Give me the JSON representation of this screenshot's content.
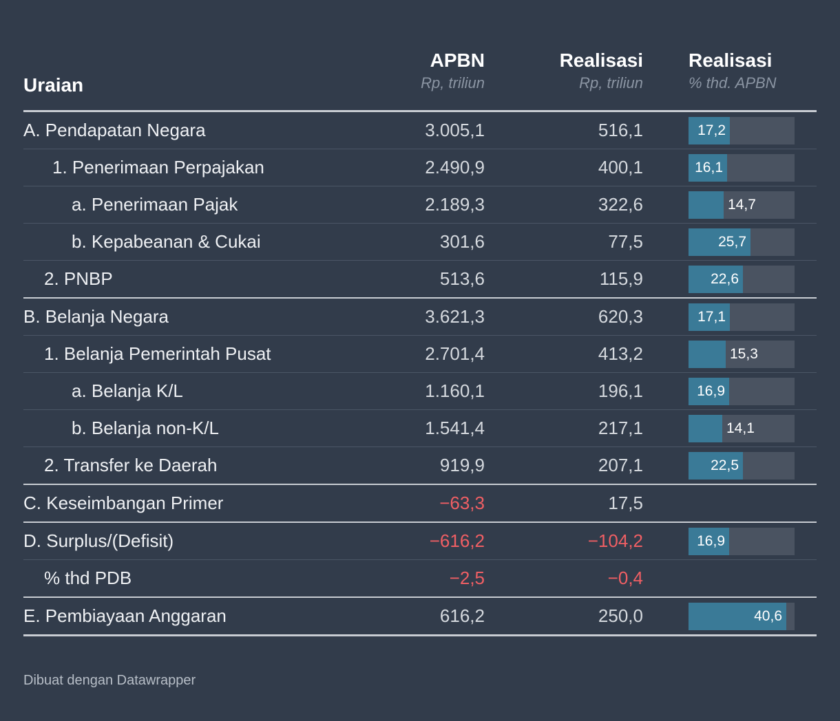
{
  "header": {
    "uraian": "Uraian",
    "apbn_title": "APBN",
    "apbn_sub": "Rp, triliun",
    "realisasi_title": "Realisasi",
    "realisasi_sub": "Rp, triliun",
    "pct_title": "Realisasi",
    "pct_sub": "% thd. APBN"
  },
  "chart_data": {
    "type": "table",
    "columns": [
      "Uraian",
      "APBN",
      "Realisasi",
      "Realisasi"
    ],
    "bar_scale_max": 44,
    "rows": [
      {
        "label": "A. Pendapatan Negara",
        "indent": 0,
        "apbn": "3.005,1",
        "realisasi": "516,1",
        "pct": 17.2,
        "pct_label": "17,2"
      },
      {
        "label": "1. Penerimaan Perpajakan",
        "indent": 1,
        "apbn": "2.490,9",
        "realisasi": "400,1",
        "pct": 16.1,
        "pct_label": "16,1"
      },
      {
        "label": "a. Penerimaan Pajak",
        "indent": 2,
        "apbn": "2.189,3",
        "realisasi": "322,6",
        "pct": 14.7,
        "pct_label": "14,7"
      },
      {
        "label": "b. Kepabeanan & Cukai",
        "indent": 2,
        "apbn": "301,6",
        "realisasi": "77,5",
        "pct": 25.7,
        "pct_label": "25,7"
      },
      {
        "label": "2. PNBP",
        "indent": 1,
        "apbn": "513,6",
        "realisasi": "115,9",
        "pct": 22.6,
        "pct_label": "22,6",
        "divider": true
      },
      {
        "label": "B. Belanja Negara",
        "indent": 0,
        "apbn": "3.621,3",
        "realisasi": "620,3",
        "pct": 17.1,
        "pct_label": "17,1"
      },
      {
        "label": "1. Belanja Pemerintah Pusat",
        "indent": 1,
        "apbn": "2.701,4",
        "realisasi": "413,2",
        "pct": 15.3,
        "pct_label": "15,3"
      },
      {
        "label": "a. Belanja K/L",
        "indent": 2,
        "apbn": "1.160,1",
        "realisasi": "196,1",
        "pct": 16.9,
        "pct_label": "16,9"
      },
      {
        "label": "b. Belanja non-K/L",
        "indent": 2,
        "apbn": "1.541,4",
        "realisasi": "217,1",
        "pct": 14.1,
        "pct_label": "14,1"
      },
      {
        "label": "2. Transfer ke Daerah",
        "indent": 1,
        "apbn": "919,9",
        "realisasi": "207,1",
        "pct": 22.5,
        "pct_label": "22,5",
        "divider": true
      },
      {
        "label": "C. Keseimbangan Primer",
        "indent": 0,
        "apbn": "−63,3",
        "apbn_negative": true,
        "realisasi": "17,5",
        "divider": true
      },
      {
        "label": "D. Surplus/(Defisit)",
        "indent": 0,
        "apbn": "−616,2",
        "apbn_negative": true,
        "realisasi": "−104,2",
        "realisasi_negative": true,
        "pct": 16.9,
        "pct_label": "16,9"
      },
      {
        "label": "% thd PDB",
        "indent": 1,
        "apbn": "−2,5",
        "apbn_negative": true,
        "realisasi": "−0,4",
        "realisasi_negative": true,
        "divider": true
      },
      {
        "label": "E. Pembiayaan Anggaran",
        "indent": 0,
        "apbn": "616,2",
        "realisasi": "250,0",
        "pct": 40.6,
        "pct_label": "40,6",
        "last": true
      }
    ]
  },
  "colors": {
    "background": "#323c4b",
    "bar_fill": "#3a7a97",
    "bar_track": "#4a5361",
    "negative": "#f05f64"
  },
  "footer": "Dibuat dengan Datawrapper"
}
